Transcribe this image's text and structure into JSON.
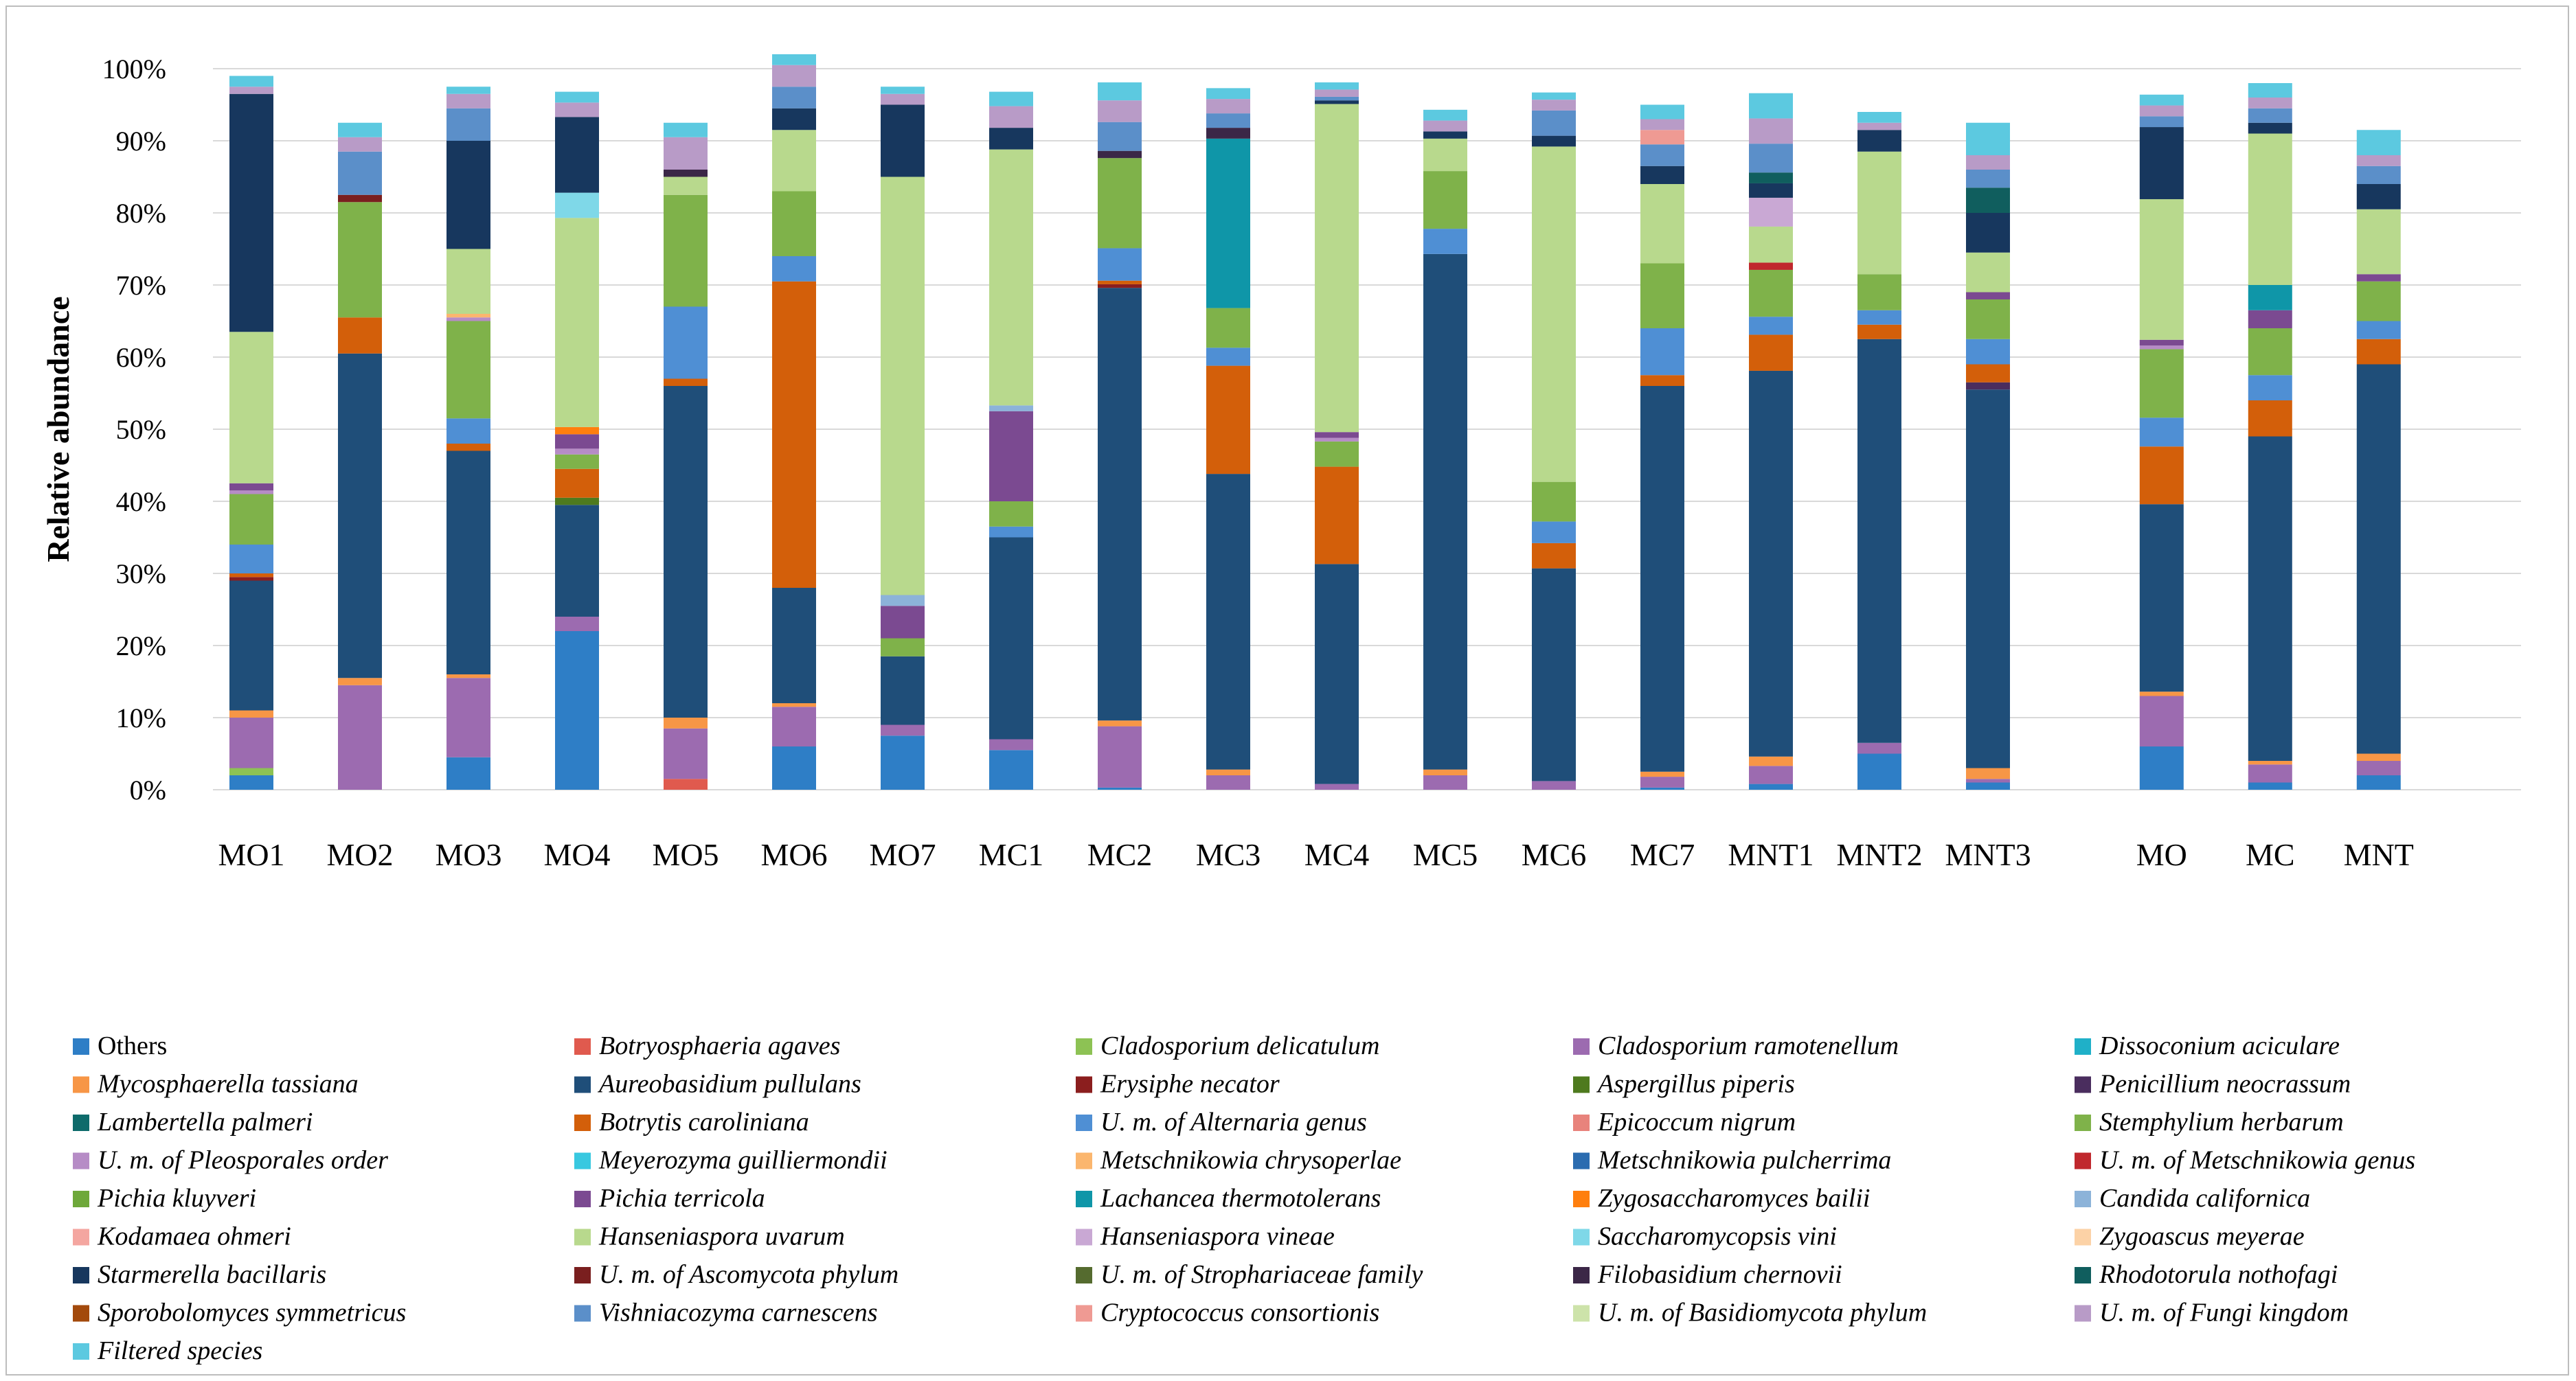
{
  "chart_data": {
    "type": "bar",
    "stacked": true,
    "title": "",
    "xlabel": "",
    "ylabel": "Relative abundance",
    "ylim": [
      0,
      100
    ],
    "yticks": [
      "0%",
      "10%",
      "20%",
      "30%",
      "40%",
      "50%",
      "60%",
      "70%",
      "80%",
      "90%",
      "100%"
    ],
    "legend_position": "bottom",
    "categories": [
      "MO1",
      "MO2",
      "MO3",
      "MO4",
      "MO5",
      "MO6",
      "MO7",
      "MC1",
      "MC2",
      "MC3",
      "MC4",
      "MC5",
      "MC6",
      "MC7",
      "MNT1",
      "MNT2",
      "MNT3",
      "MO",
      "MC",
      "MNT"
    ],
    "group_gap_after": "MNT3",
    "series": [
      {
        "name": "Others",
        "italic": false,
        "color": "#2e7ec6",
        "values": [
          2,
          0,
          4.5,
          22,
          0,
          6,
          7.5,
          5.5,
          0.3,
          0,
          0,
          0,
          0,
          0.3,
          0.8,
          5,
          1,
          6,
          1,
          2
        ]
      },
      {
        "name": "Botryosphaeria agaves",
        "italic": true,
        "color": "#e05a4e",
        "values": [
          0,
          0,
          0,
          0,
          1.5,
          0,
          0,
          0,
          0,
          0,
          0,
          0,
          0,
          0,
          0,
          0,
          0,
          0,
          0,
          0
        ]
      },
      {
        "name": "Cladosporium delicatulum",
        "italic": true,
        "color": "#8dc254",
        "values": [
          1,
          0,
          0,
          0,
          0,
          0,
          0,
          0,
          0,
          0,
          0,
          0,
          0,
          0,
          0,
          0,
          0,
          0,
          0,
          0
        ]
      },
      {
        "name": "Cladosporium ramotenellum",
        "italic": true,
        "color": "#9c6bb0",
        "values": [
          7,
          14.5,
          11,
          2,
          7,
          5.5,
          1.5,
          1.5,
          8.5,
          2,
          0.8,
          2,
          1.2,
          1.5,
          2.5,
          1.5,
          0.5,
          7,
          2.5,
          2
        ]
      },
      {
        "name": "Dissoconium aciculare",
        "italic": true,
        "color": "#1fb0c8",
        "values": [
          0,
          0,
          0,
          0,
          0,
          0,
          0,
          0,
          0,
          0,
          0,
          0,
          0,
          0,
          0,
          0,
          0,
          0,
          0,
          0
        ]
      },
      {
        "name": "Mycosphaerella tassiana",
        "italic": true,
        "color": "#f79646",
        "values": [
          1,
          1,
          0.5,
          0,
          1.5,
          0.5,
          0,
          0,
          0.8,
          0.8,
          0,
          0.8,
          0,
          0.7,
          1.3,
          0,
          1.5,
          0.6,
          0.5,
          1
        ]
      },
      {
        "name": "Aureobasidium pullulans",
        "italic": true,
        "color": "#1f4e79",
        "values": [
          18,
          45,
          31,
          15.5,
          46,
          16,
          9.5,
          28,
          60,
          41,
          30.5,
          71.5,
          29.5,
          53.5,
          53.5,
          56,
          52.5,
          26,
          45,
          54
        ]
      },
      {
        "name": "Erysiphe necator",
        "italic": true,
        "color": "#8b1e1e",
        "values": [
          0.5,
          0,
          0,
          0,
          0,
          0,
          0,
          0,
          0.5,
          0,
          0,
          0,
          0,
          0,
          0,
          0,
          0,
          0,
          0,
          0
        ]
      },
      {
        "name": "Aspergillus piperis",
        "italic": true,
        "color": "#4e7a1e",
        "values": [
          0,
          0,
          0,
          1,
          0,
          0,
          0,
          0,
          0,
          0,
          0,
          0,
          0,
          0,
          0,
          0,
          0,
          0,
          0,
          0
        ]
      },
      {
        "name": "Penicillium neocrassum",
        "italic": true,
        "color": "#4a2d5e",
        "values": [
          0,
          0,
          0,
          0,
          0,
          0,
          0,
          0,
          0,
          0,
          0,
          0,
          0,
          0,
          0,
          0,
          1,
          0,
          0,
          0
        ]
      },
      {
        "name": "Lambertella palmeri",
        "italic": true,
        "color": "#0e6b6b",
        "values": [
          0,
          0,
          0,
          0,
          0,
          0,
          0,
          0,
          0,
          0,
          0,
          0,
          0,
          0,
          0,
          0,
          0,
          0,
          0,
          0
        ]
      },
      {
        "name": "Botrytis caroliniana",
        "italic": true,
        "color": "#d35f0a",
        "values": [
          0.5,
          5,
          1,
          4,
          1,
          42.5,
          0,
          0,
          0.5,
          15,
          13.5,
          0,
          3.5,
          1.5,
          5,
          2,
          2.5,
          8,
          5,
          3.5
        ]
      },
      {
        "name": "U. m. of Alternaria genus",
        "italic": true,
        "color": "#4f8fd4",
        "values": [
          4,
          0,
          3.5,
          0,
          10,
          3.5,
          0,
          1.5,
          4.5,
          2.5,
          0,
          3.5,
          3,
          6.5,
          2.5,
          2,
          3.5,
          4,
          3.5,
          2.5
        ]
      },
      {
        "name": "Epicoccum nigrum",
        "italic": true,
        "color": "#e8837c",
        "values": [
          0,
          0,
          0,
          0,
          0,
          0,
          0,
          0,
          0,
          0,
          0,
          0,
          0,
          0,
          0,
          0,
          0,
          0,
          0,
          0
        ]
      },
      {
        "name": "Stemphylium herbarum",
        "italic": true,
        "color": "#7fb24a",
        "values": [
          7,
          16,
          13.5,
          2,
          15.5,
          9,
          2.5,
          3.5,
          12.5,
          5.5,
          3.5,
          8,
          5.5,
          9,
          6.5,
          5,
          5.5,
          9.5,
          6.5,
          5.5
        ]
      },
      {
        "name": "U. m. of Pleosporales order",
        "italic": true,
        "color": "#b68cc6",
        "values": [
          0.5,
          0,
          0.5,
          0.8,
          0,
          0,
          0,
          0,
          0,
          0,
          0.5,
          0,
          0,
          0,
          0,
          0,
          0,
          0.5,
          0,
          0
        ]
      },
      {
        "name": "Meyerozyma guilliermondii",
        "italic": true,
        "color": "#38c8e0",
        "values": [
          0,
          0,
          0,
          0,
          0,
          0,
          0,
          0,
          0,
          0,
          0,
          0,
          0,
          0,
          0,
          0,
          0,
          0,
          0,
          0
        ]
      },
      {
        "name": "Metschnikowia chrysoperlae",
        "italic": true,
        "color": "#fbb66e",
        "values": [
          0,
          0,
          0.5,
          0,
          0,
          0,
          0,
          0,
          0,
          0,
          0,
          0,
          0,
          0,
          0,
          0,
          0,
          0,
          0,
          0
        ]
      },
      {
        "name": "Metschnikowia pulcherrima",
        "italic": true,
        "color": "#2b6cb0",
        "values": [
          0,
          0,
          0,
          0,
          0,
          0,
          0,
          0,
          0,
          0,
          0,
          0,
          0,
          0,
          0,
          0,
          0,
          0,
          0,
          0
        ]
      },
      {
        "name": "U. m. of Metschnikowia genus",
        "italic": true,
        "color": "#c0282d",
        "values": [
          0,
          0,
          0,
          0,
          0,
          0,
          0,
          0,
          0,
          0,
          0,
          0,
          0,
          0,
          1,
          0,
          0,
          0,
          0,
          0
        ]
      },
      {
        "name": "Pichia kluyveri",
        "italic": true,
        "color": "#6ea83a",
        "values": [
          0,
          0,
          0,
          0,
          0,
          0,
          0,
          0,
          0,
          0,
          0,
          0,
          0,
          0,
          0,
          0,
          0,
          0,
          0,
          0
        ]
      },
      {
        "name": "Pichia terricola",
        "italic": true,
        "color": "#7b4a91",
        "values": [
          1,
          0,
          0,
          2,
          0,
          0,
          4.5,
          12.5,
          0,
          0,
          0.8,
          0,
          0,
          0,
          0,
          0,
          1,
          0.8,
          2.5,
          1
        ]
      },
      {
        "name": "Lachancea thermotolerans",
        "italic": true,
        "color": "#0f96a8",
        "values": [
          0,
          0,
          0,
          0,
          0,
          0,
          0,
          0,
          0,
          23.5,
          0,
          0,
          0,
          0,
          0,
          0,
          0,
          0,
          3.5,
          0
        ]
      },
      {
        "name": "Zygosaccharomyces bailii",
        "italic": true,
        "color": "#ff7f0e",
        "values": [
          0,
          0,
          0,
          1,
          0,
          0,
          0,
          0,
          0,
          0,
          0,
          0,
          0,
          0,
          0,
          0,
          0,
          0,
          0,
          0
        ]
      },
      {
        "name": "Candida californica",
        "italic": true,
        "color": "#8cb3d9",
        "values": [
          0,
          0,
          0,
          0,
          0,
          0,
          1.5,
          0.8,
          0,
          0,
          0,
          0,
          0,
          0,
          0,
          0,
          0,
          0,
          0,
          0
        ]
      },
      {
        "name": "Kodamaea ohmeri",
        "italic": true,
        "color": "#f4a6a0",
        "values": [
          0,
          0,
          0,
          0,
          0,
          0,
          0,
          0,
          0,
          0,
          0,
          0,
          0,
          0,
          0,
          0,
          0,
          0,
          0,
          0
        ]
      },
      {
        "name": "Hanseniaspora uvarum",
        "italic": true,
        "color": "#b8d98d",
        "values": [
          21,
          0,
          9,
          29,
          2.5,
          8.5,
          58,
          35.5,
          0,
          0,
          45.5,
          4.5,
          46.5,
          11,
          5,
          17,
          5.5,
          19.5,
          21,
          9
        ]
      },
      {
        "name": "Hanseniaspora vineae",
        "italic": true,
        "color": "#c9a8d4",
        "values": [
          0,
          0,
          0,
          0,
          0,
          0,
          0,
          0,
          0,
          0,
          0,
          0,
          0,
          0,
          4,
          0,
          0,
          0,
          0,
          0
        ]
      },
      {
        "name": "Saccharomycopsis vini",
        "italic": true,
        "color": "#7fd8e8",
        "values": [
          0,
          0,
          0,
          3.5,
          0,
          0,
          0,
          0,
          0,
          0,
          0,
          0,
          0,
          0,
          0,
          0,
          0,
          0,
          0,
          0
        ]
      },
      {
        "name": "Zygoascus meyerae",
        "italic": true,
        "color": "#fcd2a6",
        "values": [
          0,
          0,
          0,
          0,
          0,
          0,
          0,
          0,
          0,
          0,
          0,
          0,
          0,
          0,
          0,
          0,
          0,
          0,
          0,
          0
        ]
      },
      {
        "name": "Starmerella bacillaris",
        "italic": true,
        "color": "#17375e",
        "values": [
          33,
          0,
          15,
          10.5,
          0,
          3,
          10,
          3,
          0,
          0,
          0.5,
          1,
          1.5,
          2.5,
          2,
          3,
          5.5,
          10,
          1.5,
          3.5
        ]
      },
      {
        "name": "U. m. of Ascomycota phylum",
        "italic": true,
        "color": "#7a1f1f",
        "values": [
          0,
          1,
          0,
          0,
          0,
          0,
          0,
          0,
          0,
          0,
          0,
          0,
          0,
          0,
          0,
          0,
          0,
          0,
          0,
          0
        ]
      },
      {
        "name": "U. m. of Strophariaceae family",
        "italic": true,
        "color": "#556b2f",
        "values": [
          0,
          0,
          0,
          0,
          0,
          0,
          0,
          0,
          0,
          0,
          0,
          0,
          0,
          0,
          0,
          0,
          0,
          0,
          0,
          0
        ]
      },
      {
        "name": "Filobasidium chernovii",
        "italic": true,
        "color": "#3b2747",
        "values": [
          0,
          0,
          0,
          0,
          1,
          0,
          0,
          0,
          1,
          1.5,
          0,
          0,
          0,
          0,
          0,
          0,
          0,
          0,
          0,
          0
        ]
      },
      {
        "name": "Rhodotorula nothofagi",
        "italic": true,
        "color": "#105e5e",
        "values": [
          0,
          0,
          0,
          0,
          0,
          0,
          0,
          0,
          0,
          0,
          0,
          0,
          0,
          0,
          1.5,
          0,
          3.5,
          0,
          0,
          0
        ]
      },
      {
        "name": "Sporobolomyces symmetricus",
        "italic": true,
        "color": "#a34a0c",
        "values": [
          0,
          0,
          0,
          0,
          0,
          0,
          0,
          0,
          0,
          0,
          0,
          0,
          0,
          0,
          0,
          0,
          0,
          0,
          0,
          0
        ]
      },
      {
        "name": "Vishniacozyma carnescens",
        "italic": true,
        "color": "#5b8fc9",
        "values": [
          0,
          6,
          4.5,
          0,
          0,
          3,
          0,
          0,
          4,
          2,
          0.5,
          0,
          3.5,
          3,
          4,
          0,
          2.5,
          1.5,
          2,
          2.5
        ]
      },
      {
        "name": "Cryptococcus consortionis",
        "italic": true,
        "color": "#ef9a93",
        "values": [
          0,
          0,
          0,
          0,
          0,
          0,
          0,
          0,
          0,
          0,
          0,
          0,
          0,
          2,
          0,
          0,
          0,
          0,
          0,
          0
        ]
      },
      {
        "name": "U. m. of Basidiomycota phylum",
        "italic": true,
        "color": "#cde3aa",
        "values": [
          0,
          0,
          0,
          0,
          0,
          0,
          0,
          0,
          0,
          0,
          0,
          0,
          0,
          0,
          0,
          0,
          0,
          0,
          0,
          0
        ]
      },
      {
        "name": "U. m. of Fungi kingdom",
        "italic": true,
        "color": "#b89bc7",
        "values": [
          1,
          2,
          2,
          2,
          4.5,
          3,
          1.5,
          3,
          3,
          2,
          1,
          1.5,
          1.5,
          1.5,
          3.5,
          1,
          2,
          1.5,
          1.5,
          1.5
        ]
      },
      {
        "name": "Filtered species",
        "italic": true,
        "color": "#5cc9e0",
        "values": [
          1.5,
          2,
          1,
          1.5,
          2,
          1.5,
          1,
          2,
          2.5,
          1.5,
          1,
          1.5,
          1,
          2,
          3.5,
          1.5,
          4.5,
          1.5,
          2,
          3.5
        ]
      }
    ]
  }
}
